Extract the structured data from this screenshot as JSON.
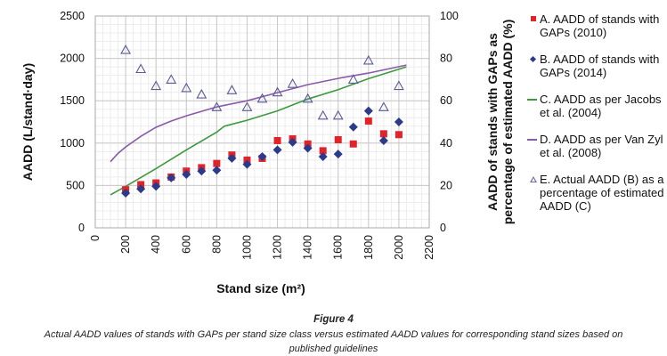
{
  "figure": {
    "label": "Figure 4",
    "caption": "Actual AADD values of stands with GAPs per stand size class versus estimated AADD values for corresponding stand sizes based on published guidelines"
  },
  "legend": {
    "items": [
      {
        "label": "A.  AADD of stands with GAPs (2010)",
        "marker": "square-icon"
      },
      {
        "label": "B.  AADD of stands with GAPs (2014)",
        "marker": "diamond-icon"
      },
      {
        "label": "C.  AADD as per Jacobs et al. (2004)",
        "marker": "line-icon"
      },
      {
        "label": "D.  AADD as per Van Zyl et al. (2008)",
        "marker": "line-icon"
      },
      {
        "label": "E.  Actual AADD (B) as a percentage of estimated AADD (C)",
        "marker": "triangle-icon"
      }
    ]
  },
  "colors": {
    "seriesA": "#e0242a",
    "seriesB": "#2c3a8c",
    "seriesC": "#3c9a3c",
    "seriesD": "#8a5aa8",
    "seriesE": "#5a5a9a",
    "grid_major": "#c8c8c8",
    "grid_minor": "#ececec"
  },
  "chart_data": {
    "type": "scatter",
    "title": "",
    "xlabel": "Stand size (m²)",
    "ylabel": "AADD (L/stand·day)",
    "y2label": "AADD of stands with GAPs as percentage of estimated AADD (%)",
    "xlim": [
      0,
      2200
    ],
    "ylim": [
      0,
      2500
    ],
    "y2lim": [
      0,
      100
    ],
    "xticks": [
      0,
      200,
      400,
      600,
      800,
      1000,
      1200,
      1400,
      1600,
      1800,
      2000,
      2200
    ],
    "yticks": [
      0,
      500,
      1000,
      1500,
      2000,
      2500
    ],
    "y2ticks": [
      0,
      20,
      40,
      60,
      80,
      100
    ],
    "grid": true,
    "legend_position": "right",
    "series": [
      {
        "name": "A.  AADD of stands with GAPs (2010)",
        "kind": "scatter",
        "marker": "square",
        "axis": "left",
        "x": [
          200,
          300,
          400,
          500,
          600,
          700,
          800,
          900,
          1000,
          1100,
          1200,
          1300,
          1400,
          1500,
          1600,
          1700,
          1800,
          1900,
          2000
        ],
        "y": [
          450,
          510,
          530,
          600,
          670,
          710,
          760,
          860,
          800,
          820,
          1030,
          1050,
          990,
          910,
          1040,
          990,
          1260,
          1110,
          1100
        ]
      },
      {
        "name": "B.  AADD of stands with GAPs (2014)",
        "kind": "scatter",
        "marker": "diamond",
        "axis": "left",
        "x": [
          200,
          300,
          400,
          500,
          600,
          700,
          800,
          900,
          1000,
          1100,
          1200,
          1300,
          1400,
          1500,
          1600,
          1700,
          1800,
          1900,
          2000
        ],
        "y": [
          410,
          460,
          490,
          590,
          630,
          670,
          680,
          820,
          750,
          840,
          920,
          1010,
          940,
          840,
          870,
          1190,
          1380,
          1030,
          1250
        ]
      },
      {
        "name": "C.  AADD as per Jacobs et al. (2004)",
        "kind": "line",
        "axis": "left",
        "x": [
          100,
          200,
          400,
          600,
          800,
          850,
          1000,
          1200,
          1400,
          1600,
          1800,
          2050
        ],
        "y": [
          390,
          490,
          700,
          920,
          1130,
          1200,
          1270,
          1380,
          1520,
          1630,
          1760,
          1900
        ]
      },
      {
        "name": "D.  AADD as per Van Zyl et al. (2008)",
        "kind": "line",
        "axis": "left",
        "x": [
          100,
          150,
          200,
          300,
          400,
          500,
          600,
          800,
          1000,
          1200,
          1400,
          1600,
          1800,
          2050
        ],
        "y": [
          780,
          880,
          955,
          1080,
          1187,
          1260,
          1323,
          1428,
          1500,
          1596,
          1690,
          1764,
          1827,
          1921
        ]
      },
      {
        "name": "E.  Actual AADD (B) as a percentage of estimated AADD (C)",
        "kind": "scatter",
        "marker": "triangle",
        "axis": "right",
        "x": [
          200,
          300,
          400,
          500,
          600,
          700,
          800,
          900,
          1000,
          1100,
          1200,
          1300,
          1400,
          1500,
          1600,
          1700,
          1800,
          1900,
          2000
        ],
        "y": [
          84,
          75,
          67,
          70,
          66,
          63,
          57,
          65,
          57,
          61,
          64,
          68,
          61,
          53,
          53,
          70,
          79,
          57,
          67
        ]
      }
    ]
  }
}
